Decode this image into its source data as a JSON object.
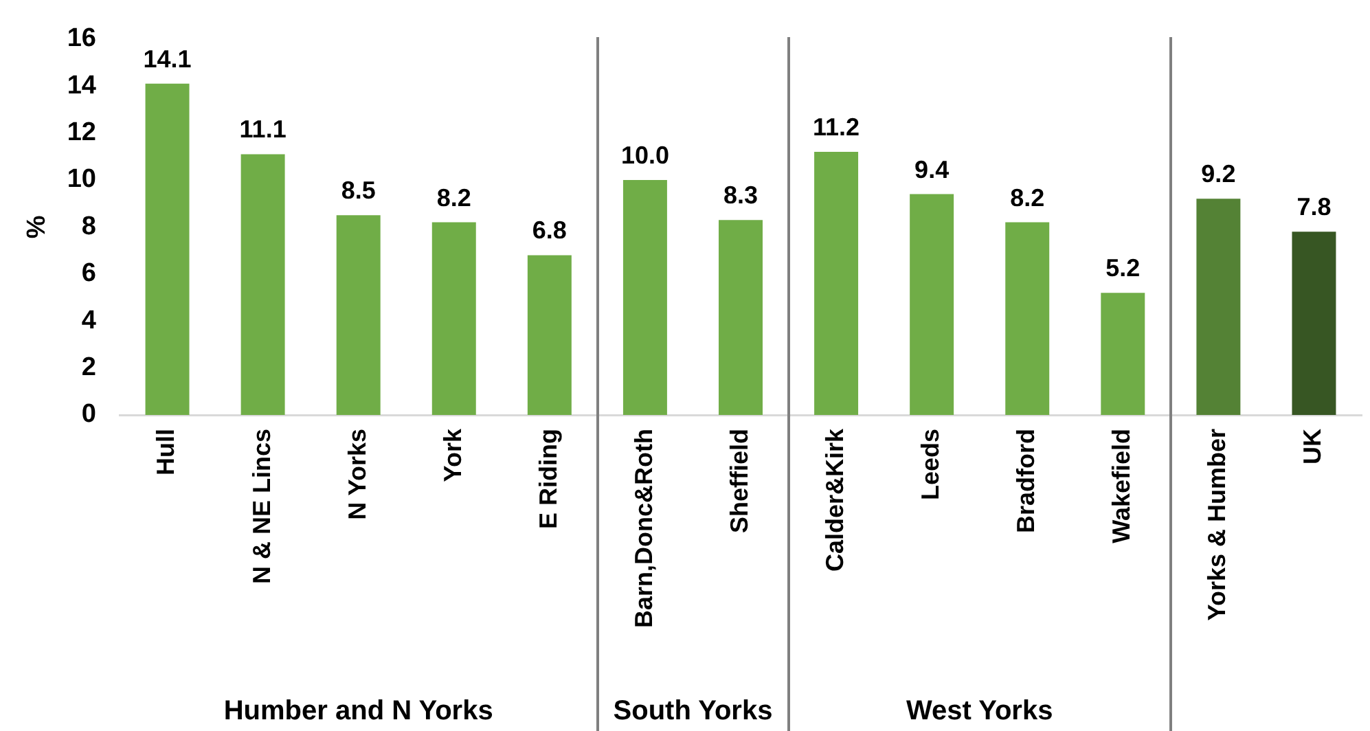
{
  "chart_data": {
    "type": "bar",
    "ylabel": "%",
    "categories": [
      "Hull",
      "N & NE Lincs",
      "N Yorks",
      "York",
      "E Riding",
      "Barn,Donc&Roth",
      "Sheffield",
      "Calder&Kirk",
      "Leeds",
      "Bradford",
      "Wakefield",
      "Yorks & Humber",
      "UK"
    ],
    "values": [
      14.1,
      11.1,
      8.5,
      8.2,
      6.8,
      10.0,
      8.3,
      11.2,
      9.4,
      8.2,
      5.2,
      9.2,
      7.8
    ],
    "value_labels": [
      "14.1",
      "11.1",
      "8.5",
      "8.2",
      "6.8",
      "10.0",
      "8.3",
      "11.2",
      "9.4",
      "8.2",
      "5.2",
      "9.2",
      "7.8"
    ],
    "colors": [
      "#70ad47",
      "#70ad47",
      "#70ad47",
      "#70ad47",
      "#70ad47",
      "#70ad47",
      "#70ad47",
      "#70ad47",
      "#70ad47",
      "#70ad47",
      "#70ad47",
      "#548235",
      "#375623"
    ],
    "ylim": [
      0,
      16
    ],
    "yticks": [
      0,
      2,
      4,
      6,
      8,
      10,
      12,
      14,
      16
    ],
    "annotations": [
      "Humber and N Yorks",
      "South Yorks",
      "West Yorks"
    ]
  }
}
